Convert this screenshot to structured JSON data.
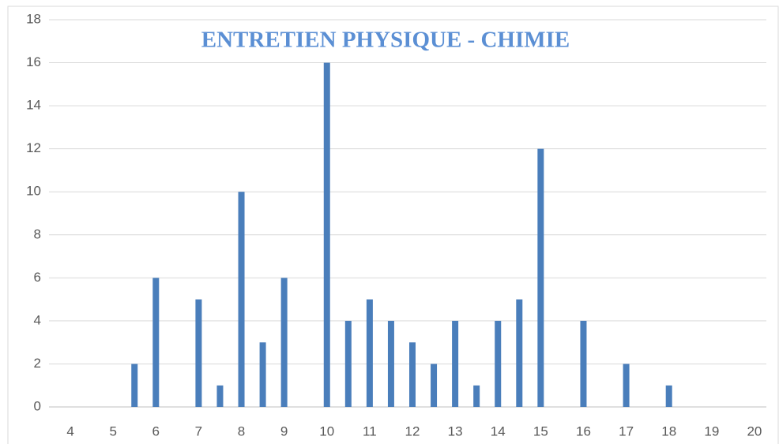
{
  "chart_data": {
    "type": "bar",
    "title": "ENTRETIEN PHYSIQUE - CHIMIE",
    "x": [
      5.5,
      6,
      7,
      7.5,
      8,
      8.5,
      9,
      10,
      10.5,
      11,
      11.5,
      12,
      12.5,
      13,
      13.5,
      14,
      14.5,
      15,
      16,
      17,
      18
    ],
    "values": [
      2,
      6,
      5,
      1,
      10,
      3,
      6,
      16,
      4,
      5,
      4,
      3,
      2,
      4,
      1,
      4,
      5,
      12,
      4,
      2,
      1
    ],
    "color": "#4a7ebb",
    "xlim": [
      3.5,
      20.5
    ],
    "xticks": [
      4,
      5,
      6,
      7,
      8,
      9,
      10,
      11,
      12,
      13,
      14,
      15,
      16,
      17,
      18,
      19,
      20
    ],
    "ylim": [
      0,
      18
    ],
    "yticks": [
      0,
      2,
      4,
      6,
      8,
      10,
      12,
      14,
      16,
      18
    ],
    "grid": true
  }
}
